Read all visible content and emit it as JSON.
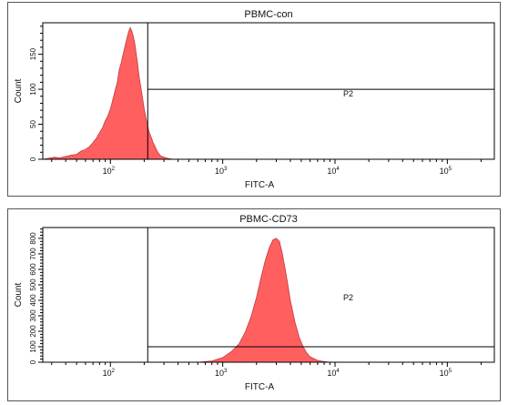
{
  "chart_data": [
    {
      "type": "area",
      "title": "PBMC-con",
      "xlabel": "FITC-A",
      "ylabel": "Count",
      "x_scale": "log",
      "xlim": [
        25,
        262144
      ],
      "ylim": [
        0,
        195
      ],
      "x_ticks": [
        {
          "base": "10",
          "exp": "2",
          "value": 100
        },
        {
          "base": "10",
          "exp": "3",
          "value": 1000
        },
        {
          "base": "10",
          "exp": "4",
          "value": 10000
        },
        {
          "base": "10",
          "exp": "5",
          "value": 100000
        }
      ],
      "y_ticks": [
        {
          "label": "0",
          "value": 0
        },
        {
          "label": "50",
          "value": 50
        },
        {
          "label": "100",
          "value": 100
        },
        {
          "label": "150",
          "value": 150
        }
      ],
      "gate": {
        "label": "P2",
        "threshold": 215,
        "y_level": 100
      },
      "fill_color": "#ff5f5f",
      "series": [
        {
          "x": [
            25,
            32,
            35,
            40,
            45,
            50,
            55,
            60,
            65,
            70,
            75,
            80,
            85,
            90,
            95,
            100,
            105,
            110,
            115,
            120,
            125,
            130,
            135,
            140,
            145,
            150,
            155,
            160,
            165,
            170,
            175,
            180,
            190,
            200,
            210,
            220,
            230,
            240,
            250,
            260,
            270,
            280,
            300,
            330,
            360
          ],
          "y": [
            0,
            3,
            2,
            4,
            6,
            7,
            12,
            14,
            18,
            24,
            30,
            38,
            45,
            55,
            62,
            72,
            85,
            98,
            110,
            128,
            138,
            150,
            162,
            172,
            182,
            188,
            183,
            175,
            165,
            150,
            135,
            118,
            95,
            72,
            55,
            40,
            32,
            24,
            18,
            12,
            8,
            5,
            3,
            1,
            0
          ]
        }
      ]
    },
    {
      "type": "area",
      "title": "PBMC-CD73",
      "xlabel": "FITC-A",
      "ylabel": "Count",
      "x_scale": "log",
      "xlim": [
        25,
        262144
      ],
      "ylim": [
        0,
        870
      ],
      "x_ticks": [
        {
          "base": "10",
          "exp": "2",
          "value": 100
        },
        {
          "base": "10",
          "exp": "3",
          "value": 1000
        },
        {
          "base": "10",
          "exp": "4",
          "value": 10000
        },
        {
          "base": "10",
          "exp": "5",
          "value": 100000
        }
      ],
      "y_ticks": [
        {
          "label": "0",
          "value": 0
        },
        {
          "label": "100",
          "value": 100
        },
        {
          "label": "200",
          "value": 200
        },
        {
          "label": "300",
          "value": 300
        },
        {
          "label": "400",
          "value": 400
        },
        {
          "label": "500",
          "value": 500
        },
        {
          "label": "600",
          "value": 600
        },
        {
          "label": "700",
          "value": 700
        },
        {
          "label": "800",
          "value": 800
        }
      ],
      "gate": {
        "label": "P2",
        "threshold": 215,
        "y_level": 100
      },
      "fill_color": "#ff5f5f",
      "series": [
        {
          "x": [
            600,
            800,
            1000,
            1200,
            1400,
            1600,
            1800,
            2000,
            2200,
            2400,
            2600,
            2800,
            3000,
            3200,
            3400,
            3600,
            3800,
            4000,
            4400,
            4800,
            5200,
            5600,
            6000,
            7000,
            8000,
            9000
          ],
          "y": [
            0,
            8,
            30,
            70,
            120,
            200,
            300,
            420,
            550,
            660,
            740,
            790,
            800,
            780,
            700,
            600,
            500,
            400,
            260,
            160,
            100,
            60,
            35,
            12,
            4,
            0
          ]
        }
      ]
    }
  ]
}
